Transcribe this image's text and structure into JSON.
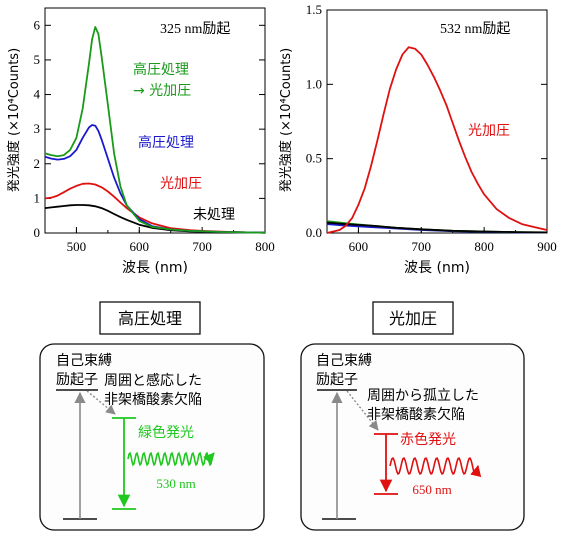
{
  "colors": {
    "green": "#1a9a1a",
    "blue": "#1a1acc",
    "red": "#e01010",
    "black": "#000000",
    "gray": "#8a8a8a",
    "teal": "#2a8a7a",
    "box_fill": "#fdfdfd",
    "box_stroke": "#111111"
  },
  "chart_data": [
    {
      "type": "line",
      "annotation": "325 nm励起",
      "xlabel": "波長 (nm)",
      "ylabel": "発光強度 (×10⁴Counts)",
      "xlim": [
        450,
        800
      ],
      "ylim": [
        0,
        6.5
      ],
      "x_ticks": [
        "500",
        "600",
        "700",
        "800"
      ],
      "y_ticks": [
        "0",
        "1",
        "2",
        "3",
        "4",
        "5",
        "6"
      ],
      "series": [
        {
          "name": "高圧処理 → 光加圧",
          "color_key": "green",
          "x": [
            450,
            460,
            470,
            480,
            490,
            500,
            510,
            520,
            525,
            530,
            535,
            540,
            550,
            560,
            570,
            580,
            600,
            620,
            650,
            680,
            700,
            730,
            760,
            800
          ],
          "y": [
            2.3,
            2.25,
            2.22,
            2.25,
            2.4,
            2.75,
            3.6,
            4.9,
            5.6,
            5.95,
            5.75,
            5.1,
            3.7,
            2.3,
            1.35,
            0.8,
            0.35,
            0.18,
            0.1,
            0.06,
            0.05,
            0.03,
            0.02,
            0.01
          ]
        },
        {
          "name": "高圧処理",
          "color_key": "blue",
          "x": [
            450,
            460,
            470,
            480,
            490,
            500,
            510,
            520,
            525,
            530,
            535,
            540,
            550,
            560,
            570,
            580,
            600,
            620,
            650,
            680,
            700,
            730,
            760,
            800
          ],
          "y": [
            2.2,
            2.15,
            2.12,
            2.14,
            2.22,
            2.4,
            2.75,
            3.05,
            3.12,
            3.1,
            2.95,
            2.7,
            2.15,
            1.6,
            1.15,
            0.8,
            0.4,
            0.2,
            0.1,
            0.06,
            0.05,
            0.03,
            0.02,
            0.01
          ]
        },
        {
          "name": "光加圧",
          "color_key": "red",
          "x": [
            450,
            460,
            470,
            480,
            490,
            500,
            510,
            520,
            530,
            540,
            550,
            560,
            570,
            580,
            600,
            620,
            650,
            680,
            700,
            730,
            760,
            800
          ],
          "y": [
            1.0,
            1.02,
            1.08,
            1.18,
            1.28,
            1.36,
            1.42,
            1.43,
            1.4,
            1.32,
            1.2,
            1.05,
            0.88,
            0.72,
            0.45,
            0.28,
            0.14,
            0.08,
            0.06,
            0.04,
            0.02,
            0.01
          ]
        },
        {
          "name": "未処理",
          "color_key": "black",
          "x": [
            450,
            460,
            470,
            480,
            490,
            500,
            510,
            520,
            530,
            540,
            550,
            560,
            570,
            580,
            600,
            620,
            650,
            680,
            700,
            730,
            760,
            800
          ],
          "y": [
            0.72,
            0.74,
            0.76,
            0.78,
            0.8,
            0.81,
            0.81,
            0.8,
            0.77,
            0.72,
            0.64,
            0.55,
            0.46,
            0.38,
            0.24,
            0.15,
            0.08,
            0.05,
            0.04,
            0.03,
            0.02,
            0.01
          ]
        }
      ]
    },
    {
      "type": "line",
      "annotation": "532 nm励起",
      "xlabel": "波長 (nm)",
      "ylabel": "発光強度 (×10⁴Counts)",
      "xlim": [
        550,
        900
      ],
      "ylim": [
        0,
        1.5
      ],
      "x_ticks": [
        "600",
        "700",
        "800",
        "900"
      ],
      "y_ticks": [
        "0.0",
        "0.5",
        "1.0",
        "1.5"
      ],
      "series": [
        {
          "name": "光加圧",
          "color_key": "red",
          "x": [
            550,
            560,
            570,
            580,
            590,
            600,
            610,
            620,
            630,
            640,
            650,
            660,
            670,
            680,
            690,
            700,
            710,
            720,
            730,
            740,
            750,
            760,
            770,
            780,
            790,
            800,
            820,
            840,
            860,
            880,
            900
          ],
          "y": [
            0.0,
            0.01,
            0.02,
            0.05,
            0.1,
            0.19,
            0.3,
            0.45,
            0.62,
            0.8,
            0.97,
            1.1,
            1.2,
            1.25,
            1.24,
            1.2,
            1.13,
            1.05,
            0.96,
            0.86,
            0.74,
            0.62,
            0.51,
            0.41,
            0.33,
            0.26,
            0.16,
            0.1,
            0.06,
            0.04,
            0.02
          ]
        },
        {
          "color_key": "black",
          "x": [
            550,
            580,
            620,
            660,
            700,
            750,
            800,
            850,
            900
          ],
          "y": [
            0.07,
            0.06,
            0.05,
            0.035,
            0.025,
            0.015,
            0.01,
            0.006,
            0.004
          ]
        },
        {
          "color_key": "green",
          "x": [
            550,
            580,
            620,
            660,
            700,
            750,
            800,
            850,
            900
          ],
          "y": [
            0.08,
            0.065,
            0.05,
            0.035,
            0.025,
            0.015,
            0.01,
            0.006,
            0.004
          ]
        },
        {
          "color_key": "blue",
          "x": [
            550,
            580,
            620,
            660,
            700,
            750,
            800,
            850,
            900
          ],
          "y": [
            0.06,
            0.05,
            0.04,
            0.03,
            0.02,
            0.012,
            0.008,
            0.005,
            0.003
          ]
        }
      ]
    }
  ],
  "chart1_labels": {
    "green_line1": "高圧処理",
    "green_line2": "→ 光加圧",
    "blue": "高圧処理",
    "red": "光加圧",
    "black": "未処理"
  },
  "chart2_labels": {
    "red": "光加圧"
  },
  "diagrams": [
    {
      "title": "高圧処理",
      "state_line1": "自己束縛",
      "state_line2": "励起子",
      "defect_line1": "周囲と感応した",
      "defect_line2": "非架橋酸素欠陥",
      "emission": "緑色発光",
      "wavelength": "530 nm"
    },
    {
      "title": "光加圧",
      "state_line1": "自己束縛",
      "state_line2": "励起子",
      "defect_line1": "周囲から孤立した",
      "defect_line2": "非架橋酸素欠陥",
      "emission": "赤色発光",
      "wavelength": "650 nm"
    }
  ]
}
